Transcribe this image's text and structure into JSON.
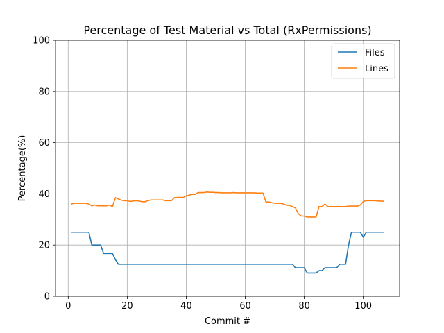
{
  "chart_data": {
    "type": "line",
    "title": "Percentage of Test Material vs Total (RxPermissions)",
    "xlabel": "Commit #",
    "ylabel": "Percentage(%)",
    "xlim": [
      -4.3,
      112.3
    ],
    "ylim": [
      0,
      100
    ],
    "xticks": [
      0,
      20,
      40,
      60,
      80,
      100
    ],
    "yticks": [
      0,
      20,
      40,
      60,
      80,
      100
    ],
    "grid": true,
    "legend_position": "top-right",
    "series": [
      {
        "name": "Files",
        "color": "#1f77b4",
        "x": [
          1,
          2,
          3,
          4,
          5,
          6,
          7,
          8,
          9,
          10,
          11,
          12,
          13,
          14,
          15,
          16,
          17,
          18,
          19,
          20,
          21,
          22,
          23,
          24,
          25,
          26,
          27,
          28,
          29,
          30,
          31,
          32,
          33,
          34,
          35,
          36,
          37,
          38,
          39,
          40,
          41,
          42,
          43,
          44,
          45,
          46,
          47,
          48,
          49,
          50,
          51,
          52,
          53,
          54,
          55,
          56,
          57,
          58,
          59,
          60,
          61,
          62,
          63,
          64,
          65,
          66,
          67,
          68,
          69,
          70,
          71,
          72,
          73,
          74,
          75,
          76,
          77,
          78,
          79,
          80,
          81,
          82,
          83,
          84,
          85,
          86,
          87,
          88,
          89,
          90,
          91,
          92,
          93,
          94,
          95,
          96,
          97,
          98,
          99,
          100,
          101,
          102,
          103,
          104,
          105,
          106,
          107
        ],
        "values": [
          25,
          25,
          25,
          25,
          25,
          25,
          25,
          20,
          20,
          20,
          20,
          16.7,
          16.7,
          16.7,
          16.7,
          14.3,
          12.5,
          12.5,
          12.5,
          12.5,
          12.5,
          12.5,
          12.5,
          12.5,
          12.5,
          12.5,
          12.5,
          12.5,
          12.5,
          12.5,
          12.5,
          12.5,
          12.5,
          12.5,
          12.5,
          12.5,
          12.5,
          12.5,
          12.5,
          12.5,
          12.5,
          12.5,
          12.5,
          12.5,
          12.5,
          12.5,
          12.5,
          12.5,
          12.5,
          12.5,
          12.5,
          12.5,
          12.5,
          12.5,
          12.5,
          12.5,
          12.5,
          12.5,
          12.5,
          12.5,
          12.5,
          12.5,
          12.5,
          12.5,
          12.5,
          12.5,
          12.5,
          12.5,
          12.5,
          12.5,
          12.5,
          12.5,
          12.5,
          12.5,
          12.5,
          12.5,
          11.1,
          11.1,
          11.1,
          11.1,
          9.1,
          9.1,
          9.1,
          9.1,
          10,
          10,
          11.1,
          11.1,
          11.1,
          11.1,
          11.1,
          12.5,
          12.5,
          12.5,
          20,
          25,
          25,
          25,
          25,
          23.1,
          25,
          25,
          25,
          25,
          25,
          25,
          25
        ]
      },
      {
        "name": "Lines",
        "color": "#ff7f0e",
        "x": [
          1,
          2,
          3,
          4,
          5,
          6,
          7,
          8,
          9,
          10,
          11,
          12,
          13,
          14,
          15,
          16,
          17,
          18,
          19,
          20,
          21,
          22,
          23,
          24,
          25,
          26,
          27,
          28,
          29,
          30,
          31,
          32,
          33,
          34,
          35,
          36,
          37,
          38,
          39,
          40,
          41,
          42,
          43,
          44,
          45,
          46,
          47,
          48,
          49,
          50,
          51,
          52,
          53,
          54,
          55,
          56,
          57,
          58,
          59,
          60,
          61,
          62,
          63,
          64,
          65,
          66,
          67,
          68,
          69,
          70,
          71,
          72,
          73,
          74,
          75,
          76,
          77,
          78,
          79,
          80,
          81,
          82,
          83,
          84,
          85,
          86,
          87,
          88,
          89,
          90,
          91,
          92,
          93,
          94,
          95,
          96,
          97,
          98,
          99,
          100,
          101,
          102,
          103,
          104,
          105,
          106,
          107
        ],
        "values": [
          36.0,
          36.3,
          36.3,
          36.3,
          36.3,
          36.3,
          36.0,
          35.3,
          35.6,
          35.3,
          35.3,
          35.3,
          35.3,
          35.6,
          35.0,
          38.5,
          38.0,
          37.5,
          37.3,
          37.3,
          37.0,
          37.2,
          37.3,
          37.2,
          36.9,
          36.9,
          37.3,
          37.6,
          37.6,
          37.6,
          37.6,
          37.6,
          37.3,
          37.3,
          37.3,
          38.5,
          38.6,
          38.6,
          38.6,
          39.2,
          39.5,
          39.8,
          39.8,
          40.5,
          40.5,
          40.5,
          40.7,
          40.6,
          40.6,
          40.5,
          40.5,
          40.4,
          40.4,
          40.4,
          40.4,
          40.5,
          40.4,
          40.4,
          40.4,
          40.4,
          40.4,
          40.4,
          40.4,
          40.3,
          40.3,
          40.3,
          36.8,
          36.8,
          36.5,
          36.3,
          36.3,
          36.3,
          36.0,
          35.5,
          35.5,
          35.0,
          34.5,
          32.2,
          31.3,
          31.3,
          30.9,
          30.9,
          30.9,
          30.9,
          35.0,
          35.0,
          36.0,
          35.0,
          35.0,
          35.0,
          35.0,
          35.0,
          35.0,
          35.0,
          35.2,
          35.2,
          35.2,
          35.2,
          35.6,
          37.0,
          37.3,
          37.3,
          37.3,
          37.3,
          37.2,
          37.1,
          37.1
        ]
      }
    ]
  }
}
